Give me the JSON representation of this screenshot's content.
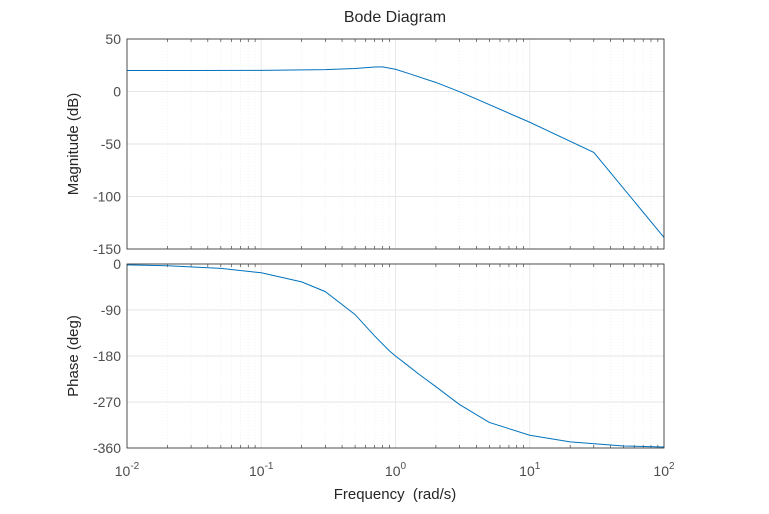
{
  "chart_data": {
    "type": "line",
    "title": "Bode Diagram",
    "xlabel": "Frequency  (rad/s)",
    "xscale": "log",
    "xlim": [
      0.01,
      100
    ],
    "xticks": [
      {
        "base": "10",
        "exp": "-2"
      },
      {
        "base": "10",
        "exp": "-1"
      },
      {
        "base": "10",
        "exp": "0"
      },
      {
        "base": "10",
        "exp": "1"
      },
      {
        "base": "10",
        "exp": "2"
      }
    ],
    "grid": true,
    "line_color": "#0072bd",
    "grid_color": "#e6e6e6",
    "subplots": [
      {
        "name": "magnitude",
        "ylabel": "Magnitude (dB)",
        "ylim": [
          -150,
          50
        ],
        "yticks": [
          "50",
          "0",
          "-50",
          "-100",
          "-150"
        ],
        "x": [
          0.01,
          0.03,
          0.1,
          0.3,
          0.5,
          0.7,
          0.8,
          1.0,
          1.3,
          2.0,
          3.0,
          10,
          30,
          100
        ],
        "y": [
          20,
          20,
          20.1,
          20.8,
          21.9,
          23.3,
          23.4,
          21.2,
          16.5,
          8.6,
          -0.2,
          -29.3,
          -58,
          -139
        ]
      },
      {
        "name": "phase",
        "ylabel": "Phase (deg)",
        "ylim": [
          -360,
          0
        ],
        "yticks": [
          "0",
          "-90",
          "-180",
          "-270",
          "-360"
        ],
        "x": [
          0.01,
          0.02,
          0.05,
          0.1,
          0.2,
          0.3,
          0.5,
          0.7,
          0.9,
          1.0,
          1.2,
          1.5,
          2.0,
          3.0,
          5.0,
          10,
          20,
          50,
          100
        ],
        "y": [
          -1.7,
          -3.4,
          -8.5,
          -17.2,
          -35,
          -54,
          -99,
          -141,
          -170,
          -180,
          -196,
          -216,
          -240,
          -275,
          -310,
          -335,
          -348,
          -356,
          -358
        ]
      }
    ]
  }
}
